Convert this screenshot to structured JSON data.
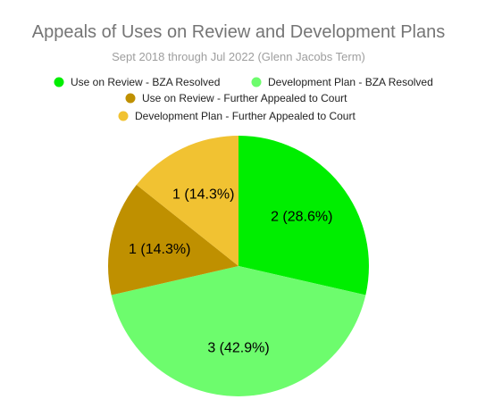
{
  "chart_data": {
    "type": "pie",
    "title": "Appeals of Uses on Review and Development Plans",
    "subtitle": "Sept 2018 through Jul 2022 (Glenn Jacobs Term)",
    "legend_position": "top",
    "start_angle_deg": 0,
    "direction": "clockwise",
    "slices": [
      {
        "label": "Use on Review - BZA Resolved",
        "value": 2,
        "data_label": "2 (28.6%)",
        "color": "#00ee00"
      },
      {
        "label": "Development Plan - BZA Resolved",
        "value": 3,
        "data_label": "3 (42.9%)",
        "color": "#6dfc6d"
      },
      {
        "label": "Use on Review - Further Appealed to Court",
        "value": 1,
        "data_label": "1 (14.3%)",
        "color": "#bf9000"
      },
      {
        "label": "Development Plan - Further Appealed to Court",
        "value": 1,
        "data_label": "1 (14.3%)",
        "color": "#f1c232"
      }
    ]
  }
}
